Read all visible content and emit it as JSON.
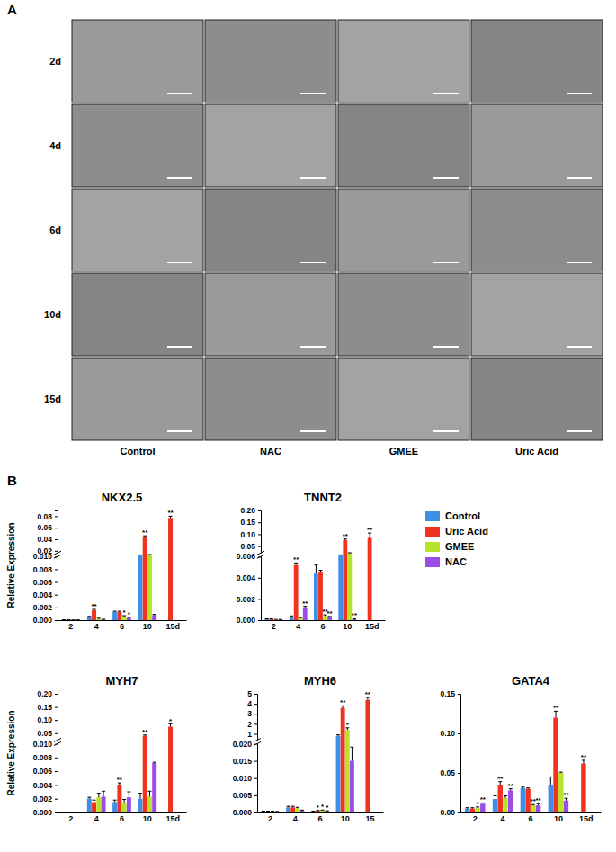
{
  "panel_a": {
    "label": "A",
    "rows": [
      "2d",
      "4d",
      "6d",
      "10d",
      "15d"
    ],
    "columns": [
      "Control",
      "NAC",
      "GMEE",
      "Uric Acid"
    ]
  },
  "panel_b": {
    "label": "B"
  },
  "chart_data": [
    {
      "type": "bar",
      "title": "NKX2.5",
      "y_label": "Relative Expression",
      "categories": [
        "2",
        "4",
        "6",
        "10",
        "15d"
      ],
      "ylim": [
        0,
        0.09
      ],
      "y_break": 0.01,
      "yticks": [
        {
          "value": 0,
          "label": "0.000"
        },
        0.002,
        0.004,
        0.006,
        0.008,
        {
          "value": 0.01,
          "label": "0.010"
        },
        0.02,
        0.04,
        0.06,
        0.08
      ],
      "series": [
        {
          "color": "#3f8fe6",
          "values": [
            5e-05,
            0.0005,
            0.0013,
            0.012,
            null
          ],
          "errors": [
            2e-05,
            0.0001,
            0.0001,
            0.0008,
            null
          ],
          "significance": [
            null,
            null,
            null,
            null,
            null
          ]
        },
        {
          "color": "#f0321e",
          "values": [
            5e-05,
            0.0016,
            0.0013,
            0.044,
            0.077
          ],
          "errors": [
            2e-05,
            0.0001,
            0.0001,
            0.002,
            0.003
          ],
          "significance": [
            null,
            "**",
            null,
            "**",
            "**"
          ]
        },
        {
          "color": "#b9e22a",
          "values": [
            3e-05,
            0.0002,
            0.0006,
            0.012,
            null
          ],
          "errors": [
            1e-05,
            0.0001,
            0.0001,
            0.0015,
            null
          ],
          "significance": [
            null,
            null,
            "*",
            null,
            null
          ]
        },
        {
          "color": "#9b4de8",
          "values": [
            3e-05,
            0.0001,
            0.0003,
            0.0008,
            null
          ],
          "errors": [
            1e-05,
            5e-05,
            0.0001,
            0.0001,
            null
          ],
          "significance": [
            null,
            null,
            "*",
            null,
            null
          ]
        }
      ]
    },
    {
      "type": "bar",
      "title": "TNNT2",
      "legend": "right",
      "categories": [
        "2",
        "4",
        "6",
        "10",
        "15d"
      ],
      "ylim": [
        0,
        0.2
      ],
      "y_break": 0.006,
      "yticks": [
        {
          "value": 0,
          "label": "0.000"
        },
        0.002,
        0.004,
        0.006,
        0.05,
        {
          "value": 0.1,
          "label": "0.10"
        },
        0.15,
        {
          "value": 0.2,
          "label": "0.20"
        }
      ],
      "series": [
        {
          "name": "Control",
          "color": "#3f8fe6",
          "values": [
            0.0001,
            0.0003,
            0.0044,
            0.012,
            null
          ],
          "errors": [
            3e-05,
            0.0001,
            0.0008,
            0.001,
            null
          ],
          "significance": [
            null,
            null,
            null,
            null,
            null
          ]
        },
        {
          "name": "Uric Acid",
          "color": "#f0321e",
          "values": [
            0.0001,
            0.0052,
            0.0045,
            0.075,
            0.085
          ],
          "errors": [
            3e-05,
            0.0002,
            0.0002,
            0.005,
            0.02
          ],
          "significance": [
            null,
            "**",
            null,
            "**",
            "**"
          ]
        },
        {
          "name": "GMEE",
          "color": "#b9e22a",
          "values": [
            5e-05,
            0.0002,
            0.0004,
            0.02,
            null
          ],
          "errors": [
            2e-05,
            5e-05,
            0.0001,
            0.002,
            null
          ],
          "significance": [
            null,
            null,
            "**",
            null,
            null
          ]
        },
        {
          "name": "NAC",
          "color": "#9b4de8",
          "values": [
            5e-05,
            0.0012,
            0.0003,
            0.0001,
            null
          ],
          "errors": [
            2e-05,
            0.0001,
            5e-05,
            3e-05,
            null
          ],
          "significance": [
            null,
            "**",
            "**",
            "**",
            null
          ]
        }
      ]
    },
    {
      "type": "bar",
      "title": "MYH7",
      "y_label": "Relative Expression",
      "categories": [
        "2",
        "4",
        "6",
        "10",
        "15d"
      ],
      "ylim": [
        0,
        0.2
      ],
      "y_break": 0.01,
      "yticks": [
        {
          "value": 0,
          "label": "0.000"
        },
        0.002,
        0.004,
        0.006,
        0.008,
        {
          "value": 0.01,
          "label": "0.010"
        },
        0.05,
        {
          "value": 0.1,
          "label": "0.10"
        },
        0.15,
        {
          "value": 0.2,
          "label": "0.20"
        }
      ],
      "series": [
        {
          "color": "#3f8fe6",
          "values": [
            2e-05,
            0.002,
            0.0015,
            0.002,
            null
          ],
          "errors": [
            1e-05,
            0.0002,
            0.0003,
            0.0008,
            null
          ],
          "significance": [
            null,
            null,
            null,
            null,
            null
          ]
        },
        {
          "color": "#f0321e",
          "values": [
            2e-05,
            0.0015,
            0.004,
            0.04,
            0.075
          ],
          "errors": [
            1e-05,
            0.0003,
            0.0003,
            0.003,
            0.01
          ],
          "significance": [
            null,
            null,
            "**",
            "**",
            "*"
          ]
        },
        {
          "color": "#b9e22a",
          "values": [
            2e-05,
            0.0022,
            0.0013,
            0.0023,
            null
          ],
          "errors": [
            1e-05,
            0.0006,
            0.0006,
            0.0008,
            null
          ],
          "significance": [
            null,
            null,
            null,
            null,
            null
          ]
        },
        {
          "color": "#9b4de8",
          "values": [
            2e-05,
            0.0023,
            0.0022,
            0.0072,
            null
          ],
          "errors": [
            1e-05,
            0.0008,
            0.0008,
            0.0001,
            null
          ],
          "significance": [
            null,
            null,
            null,
            null,
            null
          ]
        }
      ]
    },
    {
      "type": "bar",
      "title": "MYH6",
      "categories": [
        "2",
        "4",
        "6",
        "10",
        "15"
      ],
      "ylim": [
        0,
        5
      ],
      "y_break": 0.02,
      "yticks": [
        {
          "value": 0,
          "label": "0.000"
        },
        0.005,
        {
          "value": 0.01,
          "label": "0.010"
        },
        0.015,
        {
          "value": 0.02,
          "label": "0.020"
        },
        1,
        2,
        3,
        4,
        5
      ],
      "series": [
        {
          "color": "#3f8fe6",
          "values": [
            0.0003,
            0.0015,
            0.0003,
            0.8,
            null
          ],
          "errors": [
            0.0001,
            0.0003,
            0.0001,
            0.1,
            null
          ],
          "significance": [
            null,
            null,
            null,
            null,
            null
          ]
        },
        {
          "color": "#f0321e",
          "values": [
            0.0003,
            0.0015,
            0.0005,
            3.6,
            4.4
          ],
          "errors": [
            0.0001,
            0.0003,
            0.0001,
            0.2,
            0.25
          ],
          "significance": [
            null,
            null,
            "*",
            "**",
            "**"
          ]
        },
        {
          "color": "#b9e22a",
          "values": [
            0.0003,
            0.0012,
            0.0006,
            1.4,
            null
          ],
          "errors": [
            0.0001,
            0.0003,
            0.0001,
            0.2,
            null
          ],
          "significance": [
            null,
            null,
            "*",
            "*",
            null
          ]
        },
        {
          "color": "#9b4de8",
          "values": [
            0.0002,
            0.0005,
            0.0004,
            0.015,
            null
          ],
          "errors": [
            0.0001,
            0.0002,
            0.0001,
            0.004,
            null
          ],
          "significance": [
            null,
            null,
            "*",
            null,
            null
          ]
        }
      ]
    },
    {
      "type": "bar",
      "title": "GATA4",
      "categories": [
        "2",
        "4",
        "6",
        "10",
        "15d"
      ],
      "ylim": [
        0,
        0.15
      ],
      "yticks": [
        {
          "value": 0,
          "label": "0.00"
        },
        0.05,
        {
          "value": 0.1,
          "label": "0.10"
        },
        0.15
      ],
      "series": [
        {
          "color": "#3f8fe6",
          "values": [
            0.005,
            0.017,
            0.031,
            0.035,
            null
          ],
          "errors": [
            0.001,
            0.004,
            0.001,
            0.01,
            null
          ],
          "significance": [
            null,
            null,
            null,
            null,
            null
          ]
        },
        {
          "color": "#f0321e",
          "values": [
            0.005,
            0.035,
            0.03,
            0.12,
            0.062
          ],
          "errors": [
            0.001,
            0.004,
            0.001,
            0.008,
            0.004
          ],
          "significance": [
            null,
            "**",
            null,
            "**",
            "**"
          ]
        },
        {
          "color": "#b9e22a",
          "values": [
            0.006,
            0.018,
            0.009,
            0.05,
            null
          ],
          "errors": [
            0.001,
            0.003,
            0.001,
            0.001,
            null
          ],
          "significance": [
            "*",
            null,
            "**",
            null,
            null
          ]
        },
        {
          "color": "#9b4de8",
          "values": [
            0.011,
            0.028,
            0.009,
            0.015,
            null
          ],
          "errors": [
            0.001,
            0.002,
            0.002,
            0.003,
            null
          ],
          "significance": [
            "**",
            "**",
            "**",
            "**",
            null
          ]
        }
      ]
    }
  ]
}
